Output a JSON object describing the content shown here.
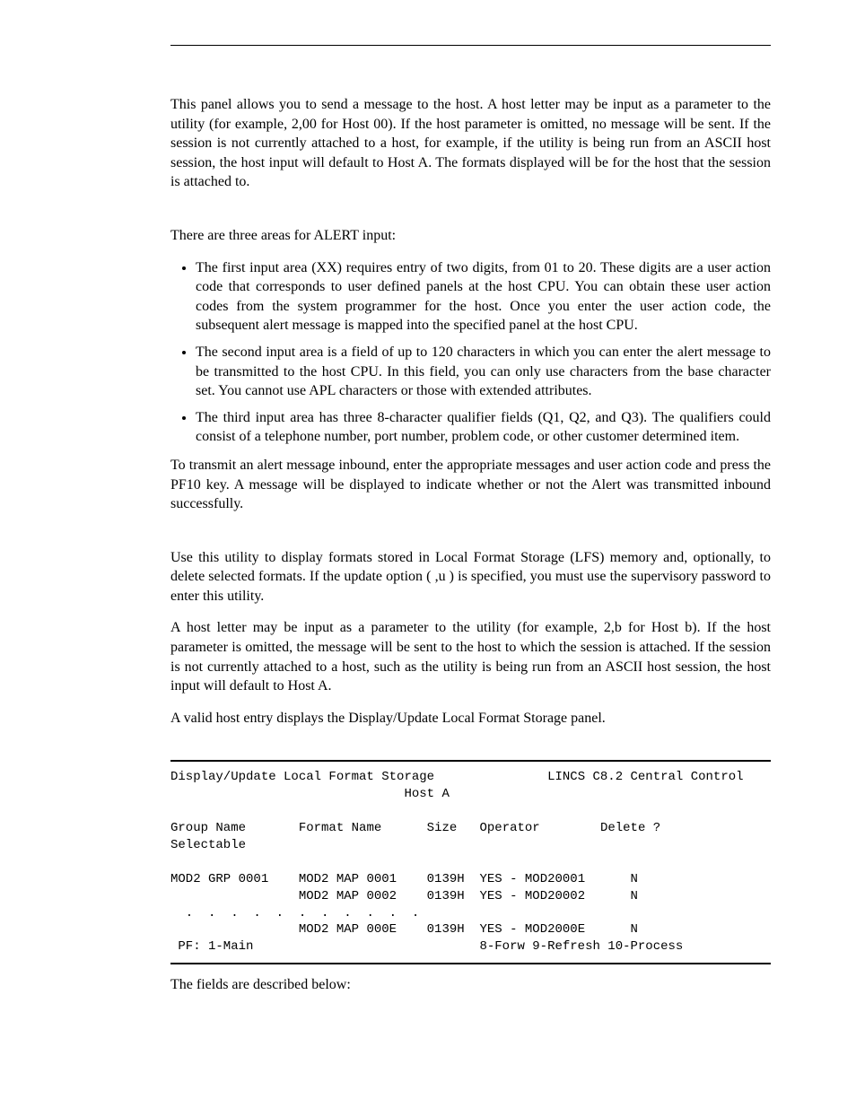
{
  "intro": {
    "p1": "This panel allows you to send a message to the host. A host letter may be input as a parameter to the utility (for example, 2,00 for Host 00). If the host parameter is omitted, no message will be sent. If the session is not currently attached to a host, for example, if the utility is being run from an ASCII host session, the host input will default to Host A. The formats displayed will be for the host that the session is attached to."
  },
  "alert": {
    "lead": "There are three areas for ALERT input:",
    "items": [
      "The first input area (XX) requires entry of two digits, from 01 to 20. These digits are a user action code that corresponds to user defined panels at the host CPU. You can obtain these user action codes from the system programmer for the host. Once you enter the user action code, the subsequent alert message is mapped into the specified panel at the host CPU.",
      "The second input area is a field of up to 120 characters in which you can enter the alert message to be transmitted to the host CPU. In this field, you can only use characters from the base character set. You cannot use APL characters or those with extended attributes.",
      "The third input area has three 8-character qualifier fields (Q1, Q2, and Q3). The qualifiers could consist of a telephone number, port number, problem code, or other customer determined item."
    ],
    "trail": "To transmit an alert message inbound, enter the appropriate messages and user action code and press the PF10 key. A message will be displayed to indicate whether or not the Alert was transmitted inbound successfully."
  },
  "lfs": {
    "p1": "Use this utility to display formats stored in Local Format Storage (LFS) memory and, optionally, to delete selected formats. If the update option ( ,u ) is specified, you must use the supervisory password to enter this utility.",
    "p2": "A host letter may be input as a parameter to the utility (for example, 2,b for Host b). If the host parameter is omitted, the message will be sent to the host to which the session is attached. If the session is not currently attached to a host, such as the utility is being run from an ASCII host session, the host input will default to Host A.",
    "p3": "A valid host entry displays the Display/Update Local Format Storage panel."
  },
  "terminal": {
    "title_left": "Display/Update Local Format Storage",
    "title_right": "LINCS C8.2 Central Control",
    "subtitle": "Host A",
    "header": {
      "c1": "Group Name",
      "c2": "Format Name",
      "c3": "Size",
      "c4": "Operator",
      "c5": "Delete ?",
      "c1b": "Selectable"
    },
    "rows": [
      {
        "group": "MOD2 GRP 0001",
        "format": "MOD2 MAP 0001",
        "size": "0139H",
        "operator": "YES - MOD20001",
        "delete": "N"
      },
      {
        "group": "",
        "format": "MOD2 MAP 0002",
        "size": "0139H",
        "operator": "YES - MOD20002",
        "delete": "N"
      },
      {
        "group": "  .  .  .  .  .",
        "format": ".  .  .  .  .  .",
        "size": "",
        "operator": "",
        "delete": ""
      },
      {
        "group": "",
        "format": "MOD2 MAP 000E",
        "size": "0139H",
        "operator": "YES - MOD2000E",
        "delete": "N"
      }
    ],
    "footer_left": " PF: 1-Main",
    "footer_right": "8-Forw 9-Refresh 10-Process"
  },
  "closing": "The fields are described below:"
}
